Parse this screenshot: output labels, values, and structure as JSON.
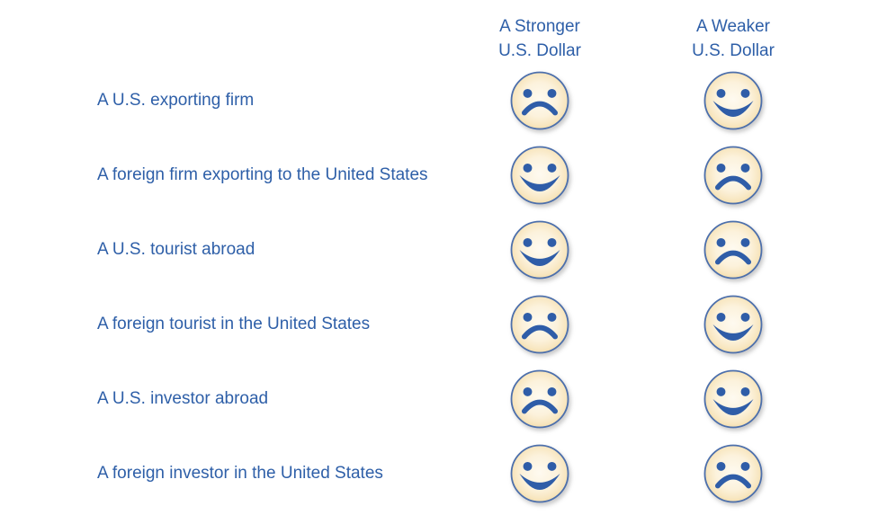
{
  "figure": {
    "columns": [
      {
        "line1": "A Stronger",
        "line2": "U.S. Dollar"
      },
      {
        "line1": "A Weaker",
        "line2": "U.S. Dollar"
      }
    ],
    "rows": [
      {
        "label": "A U.S. exporting firm",
        "stronger": "sad",
        "weaker": "happy"
      },
      {
        "label": "A foreign firm exporting to the United States",
        "stronger": "happy",
        "weaker": "sad"
      },
      {
        "label": "A U.S. tourist abroad",
        "stronger": "happy",
        "weaker": "sad"
      },
      {
        "label": "A foreign tourist in the United States",
        "stronger": "sad",
        "weaker": "happy"
      },
      {
        "label": "A U.S. investor abroad",
        "stronger": "sad",
        "weaker": "happy"
      },
      {
        "label": "A foreign investor in the United States",
        "stronger": "happy",
        "weaker": "sad"
      }
    ]
  },
  "colors": {
    "background": "#ffffff",
    "text_blue": "#2E5FA8",
    "face_outline": "#4C6FAC",
    "face_feature": "#2F5DA8",
    "face_fill_center": "#FEFAF0",
    "face_fill_mid": "#FCF2DC",
    "face_fill_edge": "#F3DCA6"
  }
}
